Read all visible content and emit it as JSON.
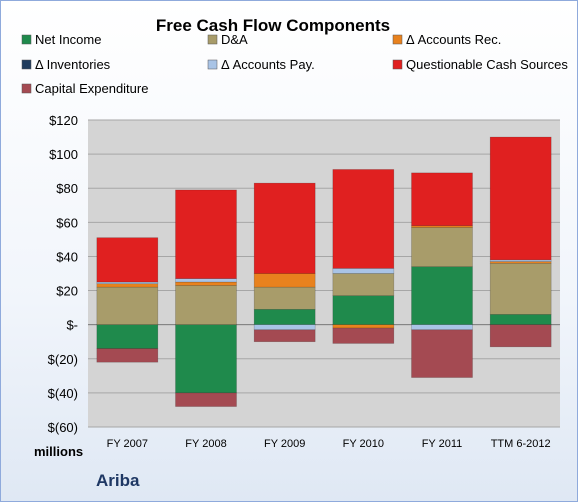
{
  "chart_data": {
    "type": "bar",
    "stacked": true,
    "title": "Free Cash Flow Components",
    "unit_label": "millions",
    "brand": "Ariba",
    "categories": [
      "FY 2007",
      "FY 2008",
      "FY 2009",
      "FY 2010",
      "FY 2011",
      "TTM 6-2012"
    ],
    "ylim": [
      -60,
      120
    ],
    "yticks": [
      {
        "value": 120,
        "label": "$120"
      },
      {
        "value": 100,
        "label": "$100"
      },
      {
        "value": 80,
        "label": "$80"
      },
      {
        "value": 60,
        "label": "$60"
      },
      {
        "value": 40,
        "label": "$40"
      },
      {
        "value": 20,
        "label": "$20"
      },
      {
        "value": 0,
        "label": "$-"
      },
      {
        "value": -20,
        "label": "$(20)"
      },
      {
        "value": -40,
        "label": "$(40)"
      },
      {
        "value": -60,
        "label": "$(60)"
      }
    ],
    "grid": true,
    "legend_position": "top",
    "series": [
      {
        "name": "Net Income",
        "color": "#1f8a4c",
        "values": [
          -14,
          -40,
          9,
          17,
          34,
          6
        ]
      },
      {
        "name": "D&A",
        "color": "#a89c6a",
        "values": [
          22,
          23,
          13,
          13,
          23,
          30
        ]
      },
      {
        "name": "Δ Accounts Rec.",
        "color": "#e8821e",
        "values": [
          2,
          2,
          8,
          -2,
          1,
          1
        ]
      },
      {
        "name": "Δ Inventories",
        "color": "#1f3b5c",
        "values": [
          0,
          0,
          0,
          0,
          0,
          0
        ]
      },
      {
        "name": "Δ Accounts Pay.",
        "color": "#a9c4e6",
        "values": [
          1,
          2,
          -3,
          3,
          -3,
          1
        ]
      },
      {
        "name": "Questionable Cash Sources",
        "color": "#e02020",
        "values": [
          26,
          52,
          53,
          58,
          31,
          72
        ]
      },
      {
        "name": "Capital Expenditure",
        "color": "#a44a52",
        "values": [
          -8,
          -8,
          -7,
          -9,
          -28,
          -13
        ]
      }
    ]
  }
}
